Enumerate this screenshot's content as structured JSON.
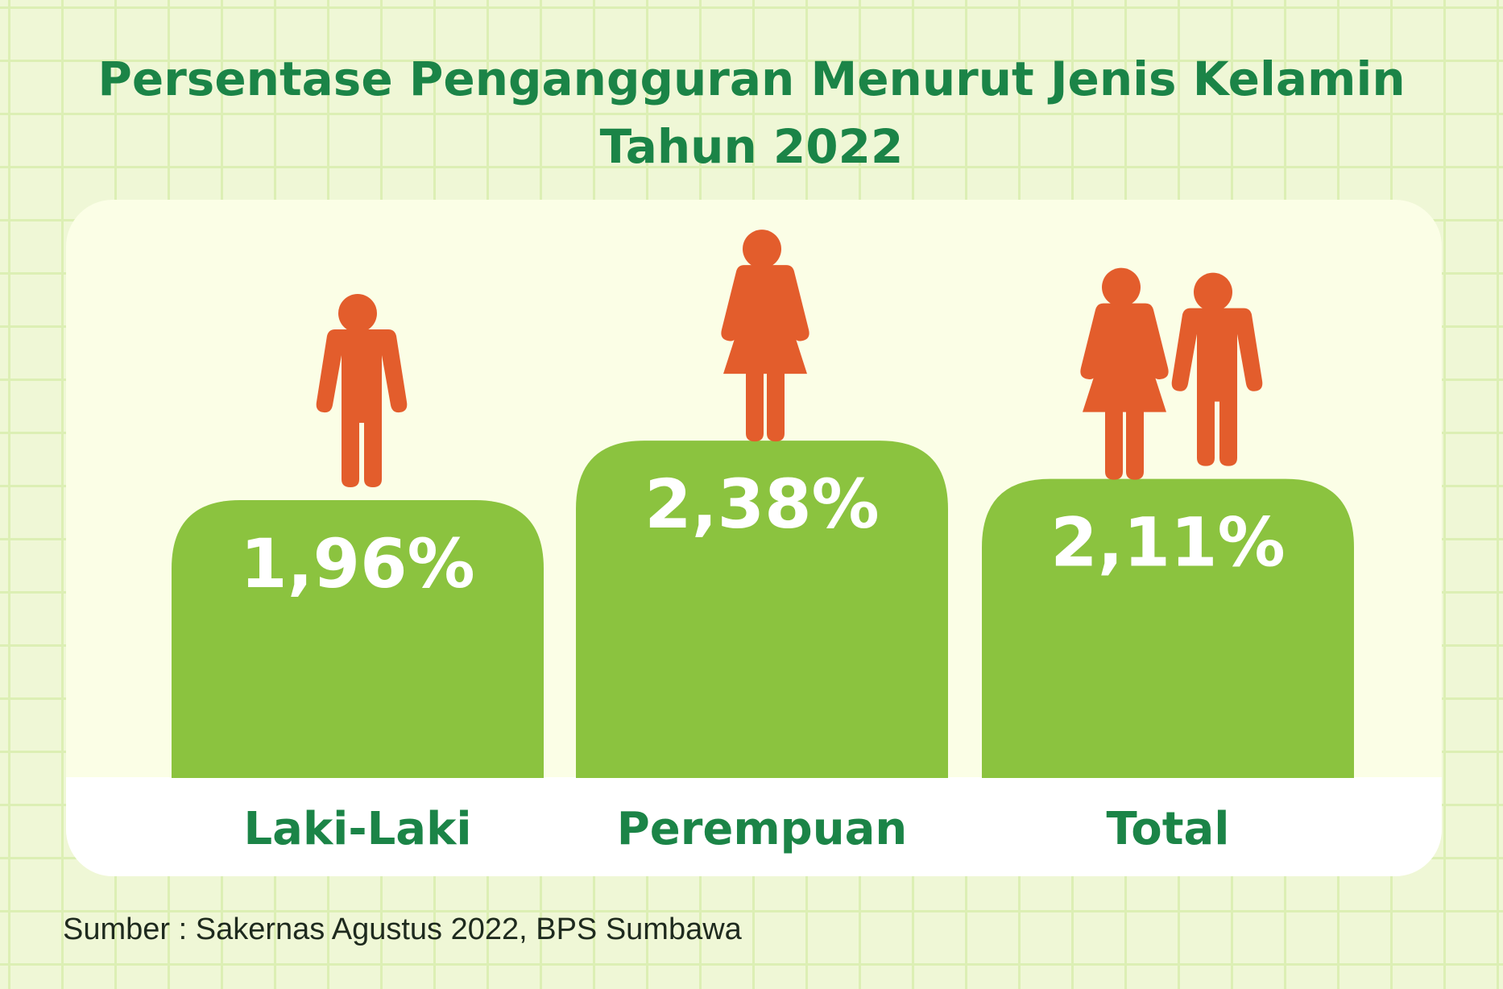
{
  "colors": {
    "title": "#1b8447",
    "bar": "#8bc33f",
    "figure": "#e35d2c",
    "value_text": "#ffffff",
    "source_text": "#1e2a1e"
  },
  "figure_icons": [
    "male-figure-icon",
    "female-figure-icon",
    "couple-figure-icon"
  ],
  "chart_data": {
    "type": "bar",
    "title": "Persentase Pengangguran Menurut Jenis Kelamin Tahun 2022",
    "title_lines": [
      "Persentase Pengangguran Menurut Jenis Kelamin",
      "Tahun 2022"
    ],
    "categories": [
      "Laki-Laki",
      "Perempuan",
      "Total"
    ],
    "values": [
      1.96,
      2.38,
      2.11
    ],
    "value_labels": [
      "1,96%",
      "2,38%",
      "2,11%"
    ],
    "unit": "%",
    "xlabel": "",
    "ylabel": "",
    "grid": false,
    "legend": "none"
  },
  "source": "Sumber : Sakernas Agustus 2022, BPS Sumbawa"
}
